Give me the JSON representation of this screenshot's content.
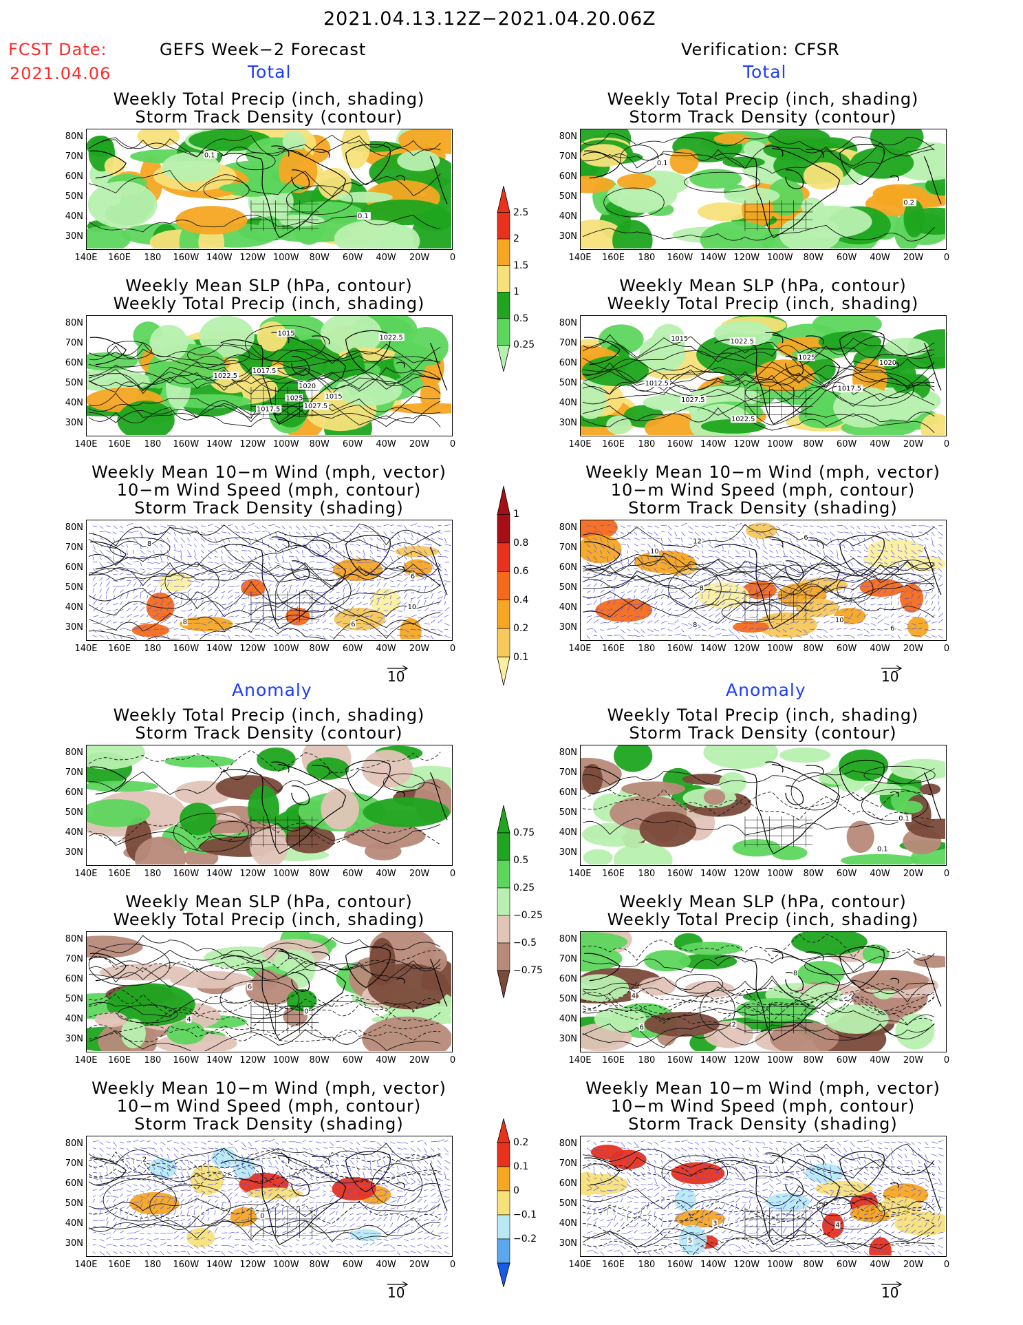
{
  "header": {
    "date_range": "2021.04.13.12Z−2021.04.20.06Z",
    "fcst_label": "FCST Date:",
    "fcst_date": "2021.04.06",
    "left_title": "GEFS Week−2 Forecast",
    "right_title": "Verification: CFSR"
  },
  "sections": {
    "total": "Total",
    "anomaly": "Anomaly"
  },
  "panel_titles": {
    "precip_storm": [
      "Weekly Total Precip (inch, shading)",
      "Storm Track Density (contour)"
    ],
    "slp_precip": [
      "Weekly Mean SLP (hPa, contour)",
      "Weekly Total Precip (inch, shading)"
    ],
    "wind": [
      "Weekly Mean 10−m Wind (mph, vector)",
      "10−m Wind Speed (mph, contour)",
      "Storm Track Density (shading)"
    ]
  },
  "axes": {
    "lat_labels": [
      "80N",
      "70N",
      "60N",
      "50N",
      "40N",
      "30N"
    ],
    "lon_labels": [
      "140E",
      "160E",
      "180",
      "160W",
      "140W",
      "120W",
      "100W",
      "80W",
      "60W",
      "40W",
      "20W",
      "0"
    ]
  },
  "vector_ref": "10",
  "colorbars": {
    "precip_total": {
      "labels": [
        "2.5",
        "2",
        "1.5",
        "1",
        "0.5",
        "0.25"
      ],
      "colors": [
        "#e8321c",
        "#f5a623",
        "#f7e27a",
        "#1fa51f",
        "#5dd65d",
        "#b8f0b0"
      ]
    },
    "storm_total": {
      "labels": [
        "1",
        "0.8",
        "0.6",
        "0.4",
        "0.2",
        "0.1"
      ],
      "colors": [
        "#a50f15",
        "#e8321c",
        "#f56a1a",
        "#f5a623",
        "#f7c85a",
        "#faf0a0"
      ]
    },
    "precip_anom": {
      "labels": [
        "0.75",
        "0.5",
        "0.25",
        "−0.25",
        "−0.5",
        "−0.75"
      ],
      "colors": [
        "#1fa51f",
        "#5dd65d",
        "#b8f0b0",
        "#e2c4b8",
        "#b88a7a",
        "#7a4a3a"
      ]
    },
    "storm_anom": {
      "labels": [
        "0.2",
        "0.1",
        "0",
        "−0.1",
        "−0.2"
      ],
      "colors": [
        "#e8321c",
        "#f5a623",
        "#f7e27a",
        "#b8eaf5",
        "#5aa8f0",
        "#1a5ae8"
      ]
    }
  },
  "contour_labels": {
    "fcst_precip_total": [
      "0.1",
      "0.1"
    ],
    "obs_precip_total": [
      "0.1",
      "0.2"
    ],
    "fcst_slp_total": [
      "1015",
      "1017.5",
      "1027.5",
      "1025",
      "1022.5",
      "1020",
      "1017.5",
      "1022.5",
      "1015"
    ],
    "obs_slp_total": [
      "1022.5",
      "1025",
      "1022.5",
      "1020",
      "1027.5",
      "1015",
      "1012.5",
      "1017.5"
    ],
    "fcst_wind_total": [
      "6",
      "8",
      "10",
      "6",
      "8"
    ],
    "obs_wind_total": [
      "6",
      "8",
      "10",
      "12",
      "10",
      "8",
      "6"
    ],
    "obs_precip_anom": [
      "0.1",
      "0.1"
    ],
    "fcst_slp_anom": [
      "4",
      "6",
      "0"
    ],
    "obs_slp_anom": [
      "6",
      "8",
      "2",
      "4"
    ],
    "fcst_wind_anom": [
      "0",
      "2"
    ],
    "obs_wind_anom": [
      "3",
      "5",
      "4"
    ]
  }
}
